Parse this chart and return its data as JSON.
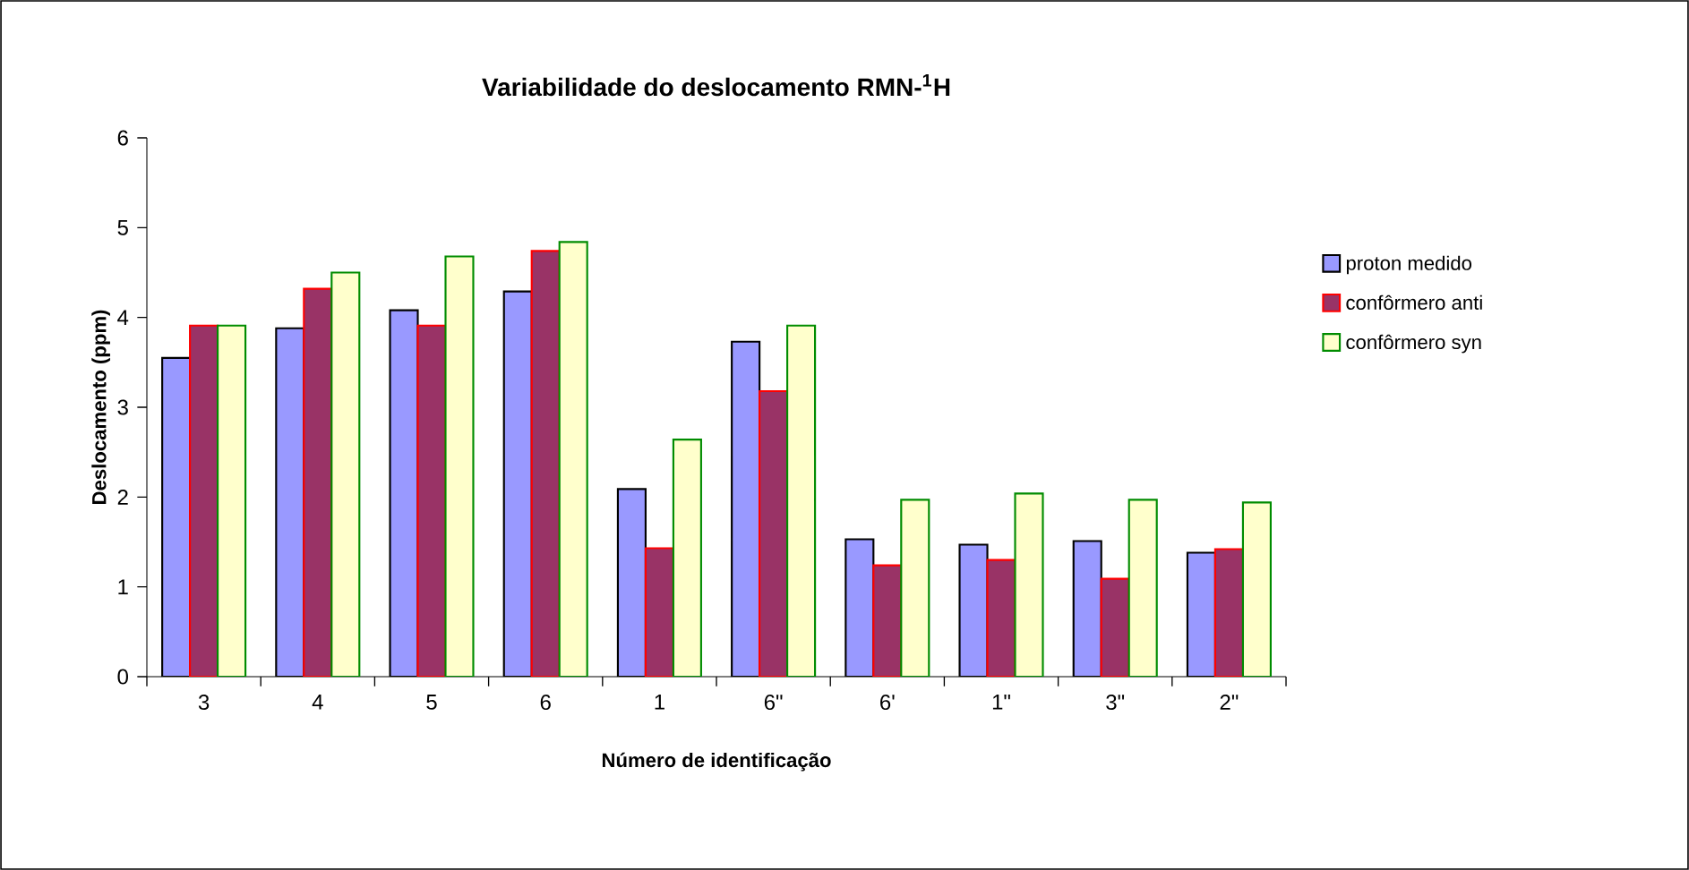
{
  "chart_data": {
    "type": "bar",
    "title": "Variabilidade do deslocamento RMN-$^{1}$H",
    "xlabel": "Número de identificação",
    "ylabel": "Deslocamento (ppm)",
    "categories": [
      "3",
      "4",
      "5",
      "6",
      "1",
      "6\"",
      "6'",
      "1\"",
      "3\"",
      "2\""
    ],
    "series": [
      {
        "name": "proton medido",
        "color": "#9999ff",
        "values": [
          3.55,
          3.88,
          4.08,
          4.29,
          2.09,
          3.73,
          1.53,
          1.47,
          1.51,
          1.38
        ]
      },
      {
        "name": "confôrmero anti",
        "color": "#993366",
        "values": [
          3.91,
          4.32,
          3.91,
          4.74,
          1.43,
          3.18,
          1.24,
          1.3,
          1.09,
          1.42
        ]
      },
      {
        "name": "confôrmero syn",
        "color": "#ffffcc",
        "values": [
          3.91,
          4.5,
          4.68,
          4.84,
          2.64,
          3.91,
          1.97,
          2.04,
          1.97,
          1.94
        ]
      }
    ],
    "ylim": [
      0,
      6
    ],
    "yticks": [
      0,
      1,
      2,
      3,
      4,
      5,
      6
    ],
    "grid": false,
    "legend": "right"
  }
}
